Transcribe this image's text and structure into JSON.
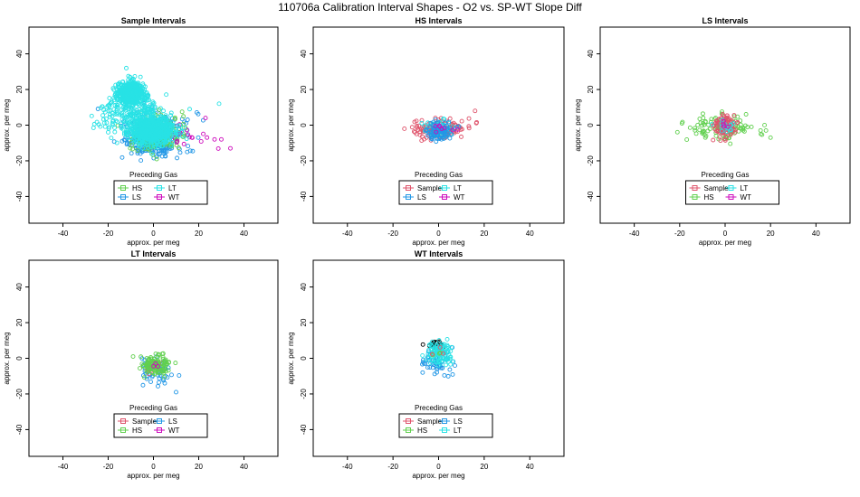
{
  "figure": {
    "title": "110706a   Calibration Interval Shapes - O2 vs. SP-WT Slope Diff"
  },
  "colors": {
    "Sample": "#df536b",
    "HS": "#61d04f",
    "LS": "#2297e6",
    "LT": "#28e2e5",
    "WT": "#cd0bbc",
    "black": "#000000"
  },
  "chart_data": [
    {
      "type": "scatter",
      "id": "sample",
      "title": "Sample Intervals",
      "xlabel": "approx. per meg",
      "ylabel": "approx. per meg",
      "xlim": [
        -55,
        55
      ],
      "ylim": [
        -55,
        55
      ],
      "xticks": [
        -40,
        -20,
        0,
        20,
        40
      ],
      "yticks": [
        -40,
        -20,
        0,
        20,
        40
      ],
      "legend": {
        "title": "Preceding Gas",
        "placement": "bottom",
        "entries": [
          "HS",
          "LT",
          "LS",
          "WT"
        ]
      },
      "series": [
        {
          "name": "LS",
          "clusters": [
            {
              "cx": 0,
              "cy": -8,
              "sx": 6,
              "sy": 5,
              "n": 260
            },
            {
              "cx": 3,
              "cy": -3,
              "sx": 10,
              "sy": 8,
              "n": 60
            }
          ]
        },
        {
          "name": "HS",
          "clusters": [
            {
              "cx": 2,
              "cy": -5,
              "sx": 6,
              "sy": 5,
              "n": 140
            }
          ]
        },
        {
          "name": "WT",
          "clusters": [
            {
              "cx": 10,
              "cy": -5,
              "sx": 8,
              "sy": 4,
              "n": 22
            }
          ],
          "points": [
            {
              "x": 34,
              "y": -13
            },
            {
              "x": 23,
              "y": 4
            },
            {
              "x": 30,
              "y": -8
            },
            {
              "x": 27,
              "y": -8
            }
          ]
        },
        {
          "name": "LT",
          "clusters": [
            {
              "cx": -10,
              "cy": 18,
              "sx": 3,
              "sy": 3,
              "n": 520
            },
            {
              "cx": -5,
              "cy": 3,
              "sx": 5,
              "sy": 6,
              "n": 260
            },
            {
              "cx": 0,
              "cy": -3,
              "sx": 5,
              "sy": 4,
              "n": 500
            },
            {
              "cx": -18,
              "cy": 5,
              "sx": 4,
              "sy": 5,
              "n": 60
            }
          ],
          "points": [
            {
              "x": -12,
              "y": 32
            },
            {
              "x": 29,
              "y": 12
            },
            {
              "x": -20,
              "y": -4
            },
            {
              "x": 16,
              "y": 9
            }
          ]
        }
      ]
    },
    {
      "type": "scatter",
      "id": "hs",
      "title": "HS Intervals",
      "xlabel": "approx. per meg",
      "ylabel": "approx. per meg",
      "xlim": [
        -55,
        55
      ],
      "ylim": [
        -55,
        55
      ],
      "xticks": [
        -40,
        -20,
        0,
        20,
        40
      ],
      "yticks": [
        -40,
        -20,
        0,
        20,
        40
      ],
      "legend": {
        "title": "Preceding Gas",
        "placement": "bottom",
        "entries": [
          "Sample",
          "LT",
          "LS",
          "WT"
        ]
      },
      "series": [
        {
          "name": "Sample",
          "clusters": [
            {
              "cx": 0,
              "cy": -2,
              "sx": 6,
              "sy": 3,
              "n": 160
            }
          ],
          "points": [
            {
              "x": 16,
              "y": 8
            },
            {
              "x": -15,
              "y": -2
            }
          ]
        },
        {
          "name": "LT",
          "clusters": [
            {
              "cx": 0,
              "cy": -2,
              "sx": 3,
              "sy": 2.5,
              "n": 60
            }
          ]
        },
        {
          "name": "LS",
          "clusters": [
            {
              "cx": 0,
              "cy": -3,
              "sx": 3,
              "sy": 2.5,
              "n": 90
            }
          ]
        },
        {
          "name": "WT",
          "clusters": [
            {
              "cx": 1,
              "cy": -2,
              "sx": 3,
              "sy": 2,
              "n": 8
            }
          ]
        }
      ]
    },
    {
      "type": "scatter",
      "id": "ls",
      "title": "LS Intervals",
      "xlabel": "approx. per meg",
      "ylabel": "approx. per meg",
      "xlim": [
        -55,
        55
      ],
      "ylim": [
        -55,
        55
      ],
      "xticks": [
        -40,
        -20,
        0,
        20,
        40
      ],
      "yticks": [
        -40,
        -20,
        0,
        20,
        40
      ],
      "legend": {
        "title": "Preceding Gas",
        "placement": "bottom",
        "entries": [
          "Sample",
          "LT",
          "HS",
          "WT"
        ]
      },
      "series": [
        {
          "name": "HS",
          "clusters": [
            {
              "cx": 0,
              "cy": -1,
              "sx": 7,
              "sy": 4,
              "n": 110
            }
          ],
          "points": [
            {
              "x": -19,
              "y": 1
            },
            {
              "x": 20,
              "y": -7
            },
            {
              "x": 18,
              "y": -3
            }
          ]
        },
        {
          "name": "Sample",
          "clusters": [
            {
              "cx": 0,
              "cy": 0,
              "sx": 2.5,
              "sy": 3.5,
              "n": 90
            }
          ]
        },
        {
          "name": "LT",
          "clusters": [
            {
              "cx": 0,
              "cy": 0,
              "sx": 2,
              "sy": 2,
              "n": 15
            }
          ]
        },
        {
          "name": "WT",
          "clusters": [
            {
              "cx": 0,
              "cy": 0,
              "sx": 1.5,
              "sy": 1.5,
              "n": 4
            }
          ]
        }
      ]
    },
    {
      "type": "scatter",
      "id": "lt",
      "title": "LT Intervals",
      "xlabel": "approx. per meg",
      "ylabel": "approx. per meg",
      "xlim": [
        -55,
        55
      ],
      "ylim": [
        -55,
        55
      ],
      "xticks": [
        -40,
        -20,
        0,
        20,
        40
      ],
      "yticks": [
        -40,
        -20,
        0,
        20,
        40
      ],
      "legend": {
        "title": "Preceding Gas",
        "placement": "bottom",
        "entries": [
          "Sample",
          "LS",
          "HS",
          "WT"
        ]
      },
      "series": [
        {
          "name": "LS",
          "clusters": [
            {
              "cx": 1,
              "cy": -7,
              "sx": 3,
              "sy": 4,
              "n": 60
            }
          ],
          "points": [
            {
              "x": 10,
              "y": -19
            },
            {
              "x": 5,
              "y": -14
            }
          ]
        },
        {
          "name": "Sample",
          "clusters": [
            {
              "cx": 1,
              "cy": -4,
              "sx": 2,
              "sy": 2,
              "n": 8
            }
          ]
        },
        {
          "name": "HS",
          "clusters": [
            {
              "cx": 1,
              "cy": -4,
              "sx": 3,
              "sy": 3,
              "n": 120
            }
          ],
          "points": [
            {
              "x": -9,
              "y": 1
            }
          ]
        },
        {
          "name": "WT",
          "clusters": [
            {
              "cx": 1,
              "cy": -4,
              "sx": 1.5,
              "sy": 1.5,
              "n": 3
            }
          ]
        }
      ]
    },
    {
      "type": "scatter",
      "id": "wt",
      "title": "WT Intervals",
      "xlabel": "approx. per meg",
      "ylabel": "approx. per meg",
      "xlim": [
        -55,
        55
      ],
      "ylim": [
        -55,
        55
      ],
      "xticks": [
        -40,
        -20,
        0,
        20,
        40
      ],
      "yticks": [
        -40,
        -20,
        0,
        20,
        40
      ],
      "legend": {
        "title": "Preceding Gas",
        "placement": "bottom",
        "entries": [
          "Sample",
          "LS",
          "HS",
          "LT"
        ]
      },
      "series": [
        {
          "name": "LS",
          "clusters": [
            {
              "cx": 0,
              "cy": -2,
              "sx": 3,
              "sy": 4,
              "n": 60
            }
          ],
          "points": [
            {
              "x": -7,
              "y": -8
            }
          ]
        },
        {
          "name": "black",
          "clusters": [
            {
              "cx": -1,
              "cy": 7.5,
              "sx": 2.5,
              "sy": 1,
              "n": 22
            }
          ]
        },
        {
          "name": "LT",
          "clusters": [
            {
              "cx": 0,
              "cy": 3,
              "sx": 2.5,
              "sy": 3,
              "n": 110
            }
          ]
        },
        {
          "name": "HS",
          "clusters": [
            {
              "cx": 0,
              "cy": 3,
              "sx": 1.5,
              "sy": 1.5,
              "n": 3
            }
          ]
        },
        {
          "name": "Sample",
          "clusters": [
            {
              "cx": 0,
              "cy": 3,
              "sx": 1.5,
              "sy": 1.5,
              "n": 3
            }
          ]
        }
      ]
    }
  ]
}
